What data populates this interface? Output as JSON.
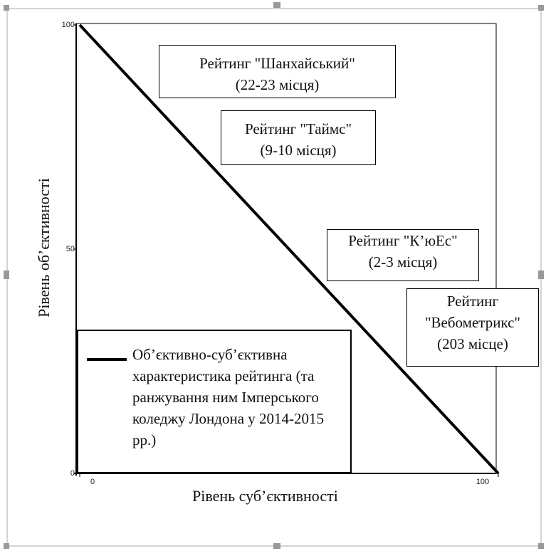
{
  "chart_data": {
    "type": "line",
    "x_label": "Рівень суб’єктивності",
    "y_label": "Рівень об’єктивності",
    "x": [
      0,
      100
    ],
    "series": [
      {
        "name": "Об’єктивно-суб’єктивна характеристика рейтинга (та ранжування ним Імперського коледжу Лондона у 2014-2015 рр.)",
        "color": "#000000",
        "values": [
          100,
          0
        ]
      }
    ],
    "xlim": [
      0,
      100
    ],
    "xticks": [
      0,
      100
    ],
    "ylim": [
      0,
      100
    ],
    "yticks": [
      0,
      50,
      100
    ],
    "annotations": [
      "Рейтинг \"Шанхайський\"\n(22-23 місця)",
      "Рейтинг \"Таймс\"\n(9-10 місця)",
      "Рейтинг \"К’юЕс\"\n(2-3 місця)",
      "Рейтинг\n\"Вебометрикс\"\n(203 місце)"
    ]
  }
}
